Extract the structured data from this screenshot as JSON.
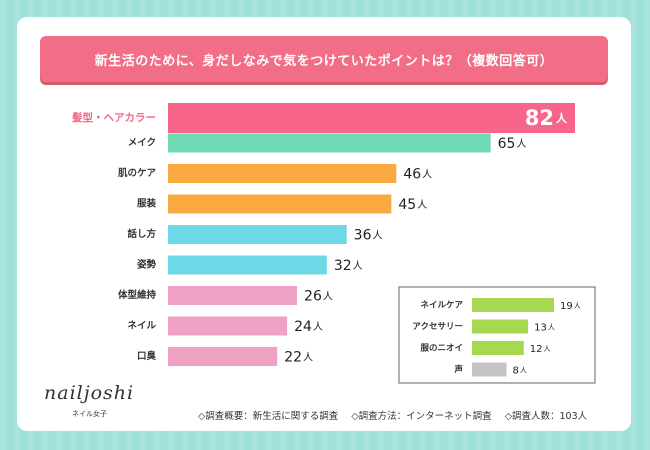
{
  "title": "新生活のために、身だしなみで気をつけていたポイントは？（複数回答可）",
  "unit": "人",
  "colors": {
    "pink_highlight": "#f7658a",
    "green": "#6fdbb4",
    "orange": "#f9a93f",
    "cyan": "#6dd8e6",
    "light_pink": "#efa1c4",
    "lime": "#a6d852",
    "gray": "#c4c4c4",
    "title_bg": "#f26d86"
  },
  "chart_data": [
    {
      "type": "bar",
      "orientation": "horizontal",
      "categories": [
        "髪型・ヘアカラー",
        "メイク",
        "肌のケア",
        "服装",
        "話し方",
        "姿勢",
        "体型維持",
        "ネイル",
        "口臭"
      ],
      "values": [
        82,
        65,
        46,
        45,
        36,
        32,
        26,
        24,
        22
      ],
      "bar_colors": [
        "#f7658a",
        "#6fdbb4",
        "#f9a93f",
        "#f9a93f",
        "#6dd8e6",
        "#6dd8e6",
        "#efa1c4",
        "#efa1c4",
        "#efa1c4"
      ],
      "highlight_index": 0,
      "xlim": [
        0,
        82
      ]
    },
    {
      "type": "bar",
      "orientation": "horizontal",
      "categories": [
        "ネイルケア",
        "アクセサリー",
        "服のニオイ",
        "声"
      ],
      "values": [
        19,
        13,
        12,
        8
      ],
      "bar_colors": [
        "#a6d852",
        "#a6d852",
        "#a6d852",
        "#c4c4c4"
      ],
      "xlim": [
        0,
        19
      ]
    }
  ],
  "logo": {
    "text": "nailjoshi",
    "sub": "ネイル女子"
  },
  "footer": {
    "summary": "◇調査概要：新生活に関する調査",
    "method": "◇調査方法：インターネット調査",
    "count": "◇調査人数：103人"
  }
}
